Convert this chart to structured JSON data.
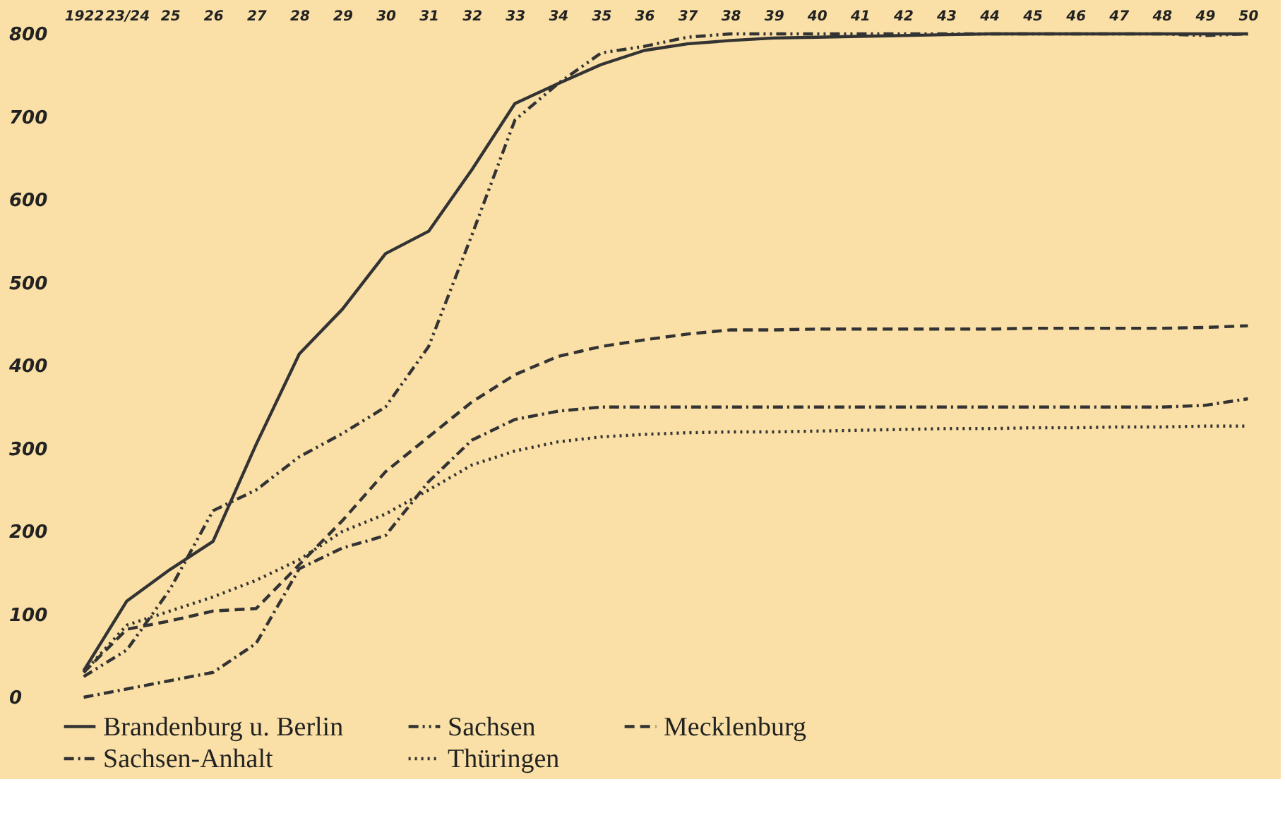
{
  "chart_data": {
    "type": "line",
    "categories": [
      "1922",
      "23/24",
      "25",
      "26",
      "27",
      "28",
      "29",
      "30",
      "31",
      "32",
      "33",
      "34",
      "35",
      "36",
      "37",
      "38",
      "39",
      "40",
      "41",
      "42",
      "43",
      "44",
      "45",
      "46",
      "47",
      "48",
      "49",
      "50"
    ],
    "series": [
      {
        "name": "Brandenburg u. Berlin",
        "color": "#333333",
        "line_style": "solid",
        "values": [
          32,
          116,
          154,
          188,
          305,
          414,
          468,
          535,
          562,
          636,
          716,
          740,
          763,
          780,
          788,
          792,
          795,
          796,
          797,
          798,
          799,
          800,
          800,
          800,
          800,
          800,
          800,
          800
        ]
      },
      {
        "name": "Sachsen",
        "color": "#333333",
        "line_style": "dashdotdot",
        "values": [
          25,
          57,
          130,
          225,
          250,
          290,
          318,
          350,
          423,
          557,
          696,
          740,
          777,
          785,
          796,
          800,
          800,
          800,
          800,
          800,
          800,
          800,
          800,
          800,
          800,
          800,
          798,
          800
        ]
      },
      {
        "name": "Mecklenburg",
        "color": "#333333",
        "line_style": "dashed",
        "values": [
          30,
          82,
          92,
          104,
          107,
          160,
          213,
          272,
          314,
          356,
          389,
          411,
          423,
          431,
          438,
          443,
          443,
          444,
          444,
          444,
          444,
          444,
          445,
          445,
          445,
          445,
          446,
          448
        ]
      },
      {
        "name": "Sachsen-Anhalt",
        "color": "#333333",
        "line_style": "dashdot",
        "values": [
          0,
          10,
          20,
          30,
          65,
          155,
          180,
          195,
          260,
          310,
          335,
          345,
          350,
          350,
          350,
          350,
          350,
          350,
          350,
          350,
          350,
          350,
          350,
          350,
          350,
          350,
          352,
          360
        ]
      },
      {
        "name": "Thüringen",
        "color": "#333333",
        "line_style": "dotted",
        "values": [
          30,
          87,
          104,
          121,
          141,
          166,
          200,
          221,
          250,
          280,
          297,
          308,
          314,
          317,
          319,
          320,
          320,
          321,
          322,
          323,
          324,
          324,
          325,
          325,
          326,
          326,
          327,
          327
        ]
      }
    ],
    "ylim": [
      0,
      800
    ],
    "yticks": [
      0,
      100,
      200,
      300,
      400,
      500,
      600,
      700,
      800
    ],
    "grid": false,
    "legend": "bottom",
    "marker": "none"
  }
}
